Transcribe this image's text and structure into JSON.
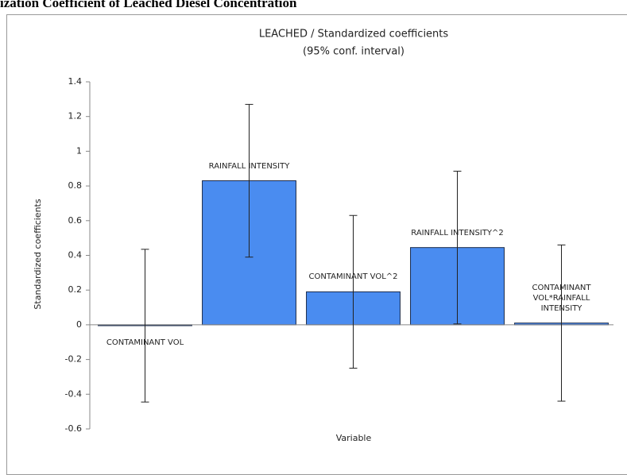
{
  "page_header": "ization Coefficient of Leached Diesel Concentration",
  "chart_data": {
    "type": "bar",
    "title": "LEACHED / Standardized coefficients",
    "subtitle": "(95% conf. interval)",
    "x_label": "Variable",
    "y_label": "Standardized coefficients",
    "categories": [
      "CONTAMINANT VOL",
      "RAINFALL INTENSITY",
      "CONTAMINANT VOL^2",
      "RAINFALL INTENSITY^2",
      "CONTAMINANT VOL*RAINFALL INTENSITY"
    ],
    "values": [
      -0.005,
      0.83,
      0.19,
      0.445,
      0.01
    ],
    "errors": [
      0.44,
      0.44,
      0.44,
      0.44,
      0.45
    ],
    "color": "#4a8cf0",
    "ylim": [
      -0.6,
      1.4
    ],
    "yticks": [
      1.4,
      1.2,
      1,
      0.8,
      0.6,
      0.4,
      0.2,
      0,
      -0.2,
      -0.4,
      -0.6
    ],
    "grid": false
  }
}
